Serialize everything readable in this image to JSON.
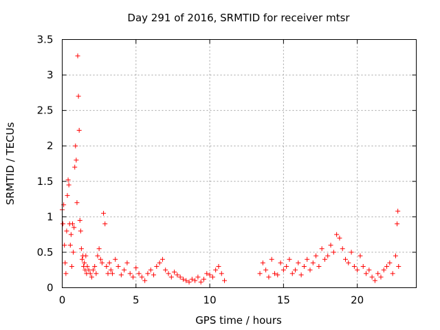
{
  "chart_data": {
    "type": "scatter",
    "title": "Day 291 of 2016, SRMTID for receiver mtsr",
    "xlabel": "GPS time / hours",
    "ylabel": "SRMTID / TECUs",
    "xlim": [
      0,
      24
    ],
    "ylim": [
      0,
      3.5
    ],
    "xticks": [
      0,
      5,
      10,
      15,
      20
    ],
    "xtick_labels": [
      "0",
      "5",
      "10",
      "15",
      "20"
    ],
    "yticks": [
      0,
      0.5,
      1,
      1.5,
      2,
      2.5,
      3,
      3.5
    ],
    "ytick_labels": [
      "0",
      "0.5",
      "1",
      "1.5",
      "2",
      "2.5",
      "3",
      "3.5"
    ],
    "grid": true,
    "marker": "+",
    "series": [
      {
        "name": "SRMTID",
        "color": "#ff0000",
        "x": [
          0.0,
          0.05,
          0.1,
          0.15,
          0.2,
          0.25,
          0.3,
          0.35,
          0.4,
          0.45,
          0.5,
          0.55,
          0.6,
          0.65,
          0.7,
          0.75,
          0.8,
          0.85,
          0.9,
          0.95,
          1.0,
          1.05,
          1.1,
          1.15,
          1.2,
          1.25,
          1.3,
          1.35,
          1.4,
          1.45,
          1.5,
          1.55,
          1.6,
          1.65,
          1.7,
          1.8,
          1.9,
          2.0,
          2.1,
          2.2,
          2.3,
          2.4,
          2.5,
          2.6,
          2.7,
          2.8,
          2.9,
          3.0,
          3.1,
          3.2,
          3.3,
          3.4,
          3.6,
          3.8,
          4.0,
          4.2,
          4.4,
          4.6,
          4.8,
          5.0,
          5.2,
          5.4,
          5.6,
          5.8,
          6.0,
          6.2,
          6.4,
          6.6,
          6.8,
          7.0,
          7.2,
          7.4,
          7.6,
          7.8,
          8.0,
          8.2,
          8.4,
          8.6,
          8.8,
          9.0,
          9.2,
          9.4,
          9.6,
          9.8,
          10.0,
          10.2,
          10.4,
          10.6,
          10.8,
          11.0,
          13.4,
          13.6,
          13.8,
          14.0,
          14.2,
          14.4,
          14.6,
          14.8,
          15.0,
          15.2,
          15.4,
          15.6,
          15.8,
          16.0,
          16.2,
          16.4,
          16.6,
          16.8,
          17.0,
          17.2,
          17.4,
          17.6,
          17.8,
          18.0,
          18.2,
          18.4,
          18.6,
          18.8,
          19.0,
          19.2,
          19.4,
          19.6,
          19.8,
          20.0,
          20.2,
          20.4,
          20.6,
          20.8,
          21.0,
          21.2,
          21.4,
          21.6,
          21.8,
          22.0,
          22.2,
          22.4,
          22.6,
          22.7,
          22.75,
          22.8
        ],
        "y": [
          1.1,
          0.9,
          1.17,
          0.6,
          0.35,
          0.2,
          0.8,
          1.3,
          1.52,
          1.45,
          0.9,
          0.6,
          0.75,
          0.3,
          0.9,
          0.5,
          0.85,
          1.7,
          2.0,
          1.8,
          1.2,
          3.27,
          2.7,
          2.22,
          0.95,
          0.8,
          0.55,
          0.4,
          0.45,
          0.3,
          0.35,
          0.25,
          0.45,
          0.2,
          0.3,
          0.25,
          0.2,
          0.15,
          0.25,
          0.3,
          0.2,
          0.45,
          0.55,
          0.4,
          0.35,
          1.05,
          0.9,
          0.3,
          0.2,
          0.35,
          0.25,
          0.2,
          0.4,
          0.3,
          0.18,
          0.25,
          0.35,
          0.2,
          0.15,
          0.28,
          0.2,
          0.15,
          0.1,
          0.2,
          0.25,
          0.18,
          0.3,
          0.35,
          0.4,
          0.25,
          0.2,
          0.15,
          0.22,
          0.18,
          0.15,
          0.12,
          0.1,
          0.08,
          0.12,
          0.1,
          0.15,
          0.08,
          0.12,
          0.2,
          0.18,
          0.15,
          0.25,
          0.3,
          0.2,
          0.1,
          0.2,
          0.35,
          0.25,
          0.15,
          0.4,
          0.2,
          0.18,
          0.35,
          0.25,
          0.3,
          0.4,
          0.2,
          0.25,
          0.35,
          0.18,
          0.3,
          0.4,
          0.25,
          0.35,
          0.45,
          0.3,
          0.55,
          0.4,
          0.45,
          0.6,
          0.5,
          0.75,
          0.7,
          0.55,
          0.4,
          0.35,
          0.5,
          0.3,
          0.25,
          0.45,
          0.3,
          0.2,
          0.25,
          0.15,
          0.1,
          0.2,
          0.15,
          0.25,
          0.3,
          0.35,
          0.2,
          0.45,
          0.9,
          1.08,
          0.3
        ]
      }
    ]
  }
}
